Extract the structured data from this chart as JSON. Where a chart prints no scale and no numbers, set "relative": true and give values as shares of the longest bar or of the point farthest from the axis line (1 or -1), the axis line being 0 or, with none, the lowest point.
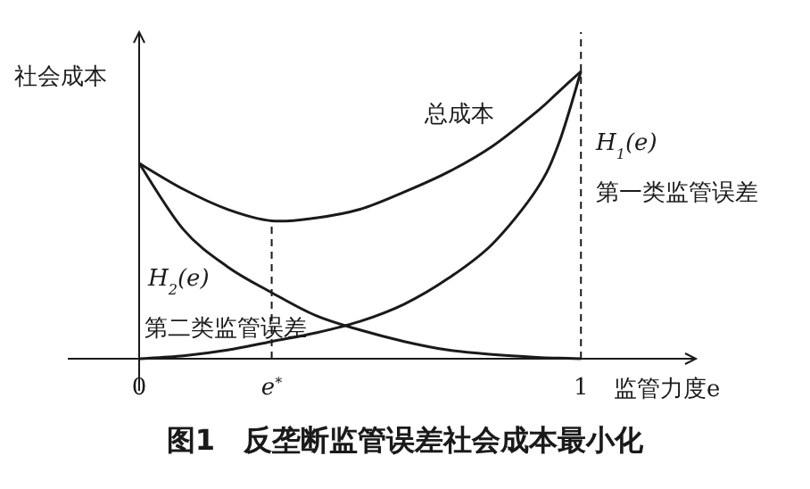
{
  "chart_data": {
    "type": "line",
    "relative": true,
    "title": "图1　反垄断监管误差社会成本最小化",
    "xlabel": "监管力度e",
    "ylabel": "社会成本",
    "xlim": [
      0,
      1.26
    ],
    "xticks": [
      0,
      {
        "value": 0.3,
        "label": "e$^{*}$"
      },
      1
    ],
    "line_style": "solid",
    "x": [
      0,
      0.1,
      0.2,
      0.3,
      0.4,
      0.5,
      0.6,
      0.7,
      0.8,
      0.9,
      0.95,
      1
    ],
    "series": [
      {
        "color": "#1a1a1a",
        "values": [
          0.68,
          0.59,
          0.52,
          0.48,
          0.49,
          0.52,
          0.58,
          0.65,
          0.74,
          0.86,
          0.93,
          1.0
        ]
      },
      {
        "color": "#1a1a1a",
        "values": [
          0,
          0.01,
          0.03,
          0.06,
          0.09,
          0.13,
          0.19,
          0.28,
          0.4,
          0.59,
          0.75,
          1.0
        ]
      },
      {
        "color": "#1a1a1a",
        "values": [
          0.68,
          0.45,
          0.32,
          0.23,
          0.15,
          0.1,
          0.06,
          0.03,
          0.015,
          0.005,
          0.002,
          0
        ]
      }
    ],
    "ref_lines": [
      {
        "axis": "x",
        "value": 0.3,
        "line_style": "dashed",
        "color": "#1a1a1a"
      },
      {
        "axis": "x",
        "value": 1,
        "line_style": "dashed",
        "color": "#1a1a1a"
      }
    ],
    "annotations": [
      "总成本",
      "H$_{1}$(e)",
      "第一类监管误差",
      "H$_{2}$(e)",
      "第二类监管误差"
    ]
  }
}
